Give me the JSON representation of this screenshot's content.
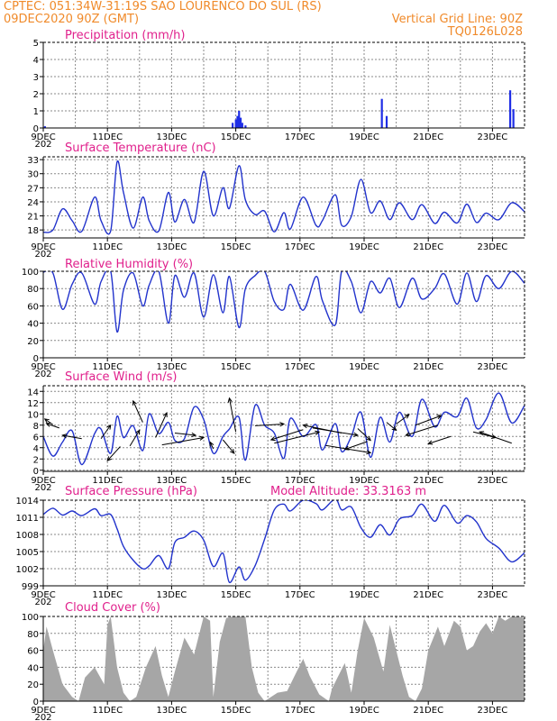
{
  "header": {
    "line1_left": "CPTEC:  051:34W-31:19S  SAO LOURENCO DO SUL (RS)",
    "line2_left": "09DEC2020 90Z (GMT)",
    "line2_right": "Vertical Grid Line: 90Z",
    "line3_right": "TQ0126L028"
  },
  "x_axis": {
    "tick_labels": [
      "9DEC",
      "11DEC",
      "13DEC",
      "15DEC",
      "17DEC",
      "19DEC",
      "21DEC",
      "23DEC"
    ],
    "tick_days": [
      0,
      2,
      4,
      6,
      8,
      10,
      12,
      14
    ],
    "start_label": "09DEC2020 90Z",
    "end_day": 15,
    "year_glyph": "202"
  },
  "chart_data": [
    {
      "type": "bar",
      "title": "Precipitation (mm/h)",
      "ylim": [
        0,
        5
      ],
      "yticks": [
        "0",
        "1",
        "2",
        "3",
        "4",
        "5"
      ],
      "grid": true,
      "color": "#1f2ee6",
      "points": [
        {
          "x": 0.05,
          "y": 0.1
        },
        {
          "x": 5.9,
          "y": 0.3
        },
        {
          "x": 6.0,
          "y": 0.5
        },
        {
          "x": 6.05,
          "y": 0.7
        },
        {
          "x": 6.1,
          "y": 1.0
        },
        {
          "x": 6.15,
          "y": 0.6
        },
        {
          "x": 6.2,
          "y": 0.3
        },
        {
          "x": 6.3,
          "y": 0.15
        },
        {
          "x": 10.55,
          "y": 1.7
        },
        {
          "x": 10.7,
          "y": 0.7
        },
        {
          "x": 14.55,
          "y": 2.2
        },
        {
          "x": 14.65,
          "y": 1.1
        }
      ]
    },
    {
      "type": "line",
      "title": "Surface Temperature (nC)",
      "ylim": [
        16.3,
        33.6
      ],
      "yticks": [
        "18",
        "21",
        "24",
        "27",
        "30",
        "33"
      ],
      "ytick_values": [
        18,
        21,
        24,
        27,
        30,
        33
      ],
      "grid": true,
      "color": "#2233cc",
      "x": [
        0,
        0.3,
        0.6,
        0.9,
        1.2,
        1.6,
        1.8,
        2.1,
        2.3,
        2.5,
        2.8,
        3.1,
        3.3,
        3.6,
        3.9,
        4.1,
        4.4,
        4.7,
        5.0,
        5.3,
        5.6,
        5.8,
        6.1,
        6.3,
        6.6,
        6.9,
        7.2,
        7.5,
        7.7,
        8.1,
        8.5,
        8.7,
        9.1,
        9.3,
        9.6,
        9.9,
        10.2,
        10.5,
        10.8,
        11.1,
        11.5,
        11.8,
        12.2,
        12.5,
        12.9,
        13.2,
        13.5,
        13.8,
        14.2,
        14.6,
        15.0
      ],
      "y": [
        17.5,
        18,
        22.5,
        20,
        17.7,
        25,
        20,
        17.8,
        32.5,
        26,
        18.4,
        25,
        20,
        17.8,
        26,
        19.7,
        24.5,
        19.6,
        30.5,
        21,
        27,
        22.6,
        31.7,
        24.4,
        21.3,
        22,
        17.6,
        21.7,
        18.2,
        25,
        19,
        20,
        25.5,
        19,
        20.9,
        28.8,
        21.7,
        24.2,
        20.2,
        23.8,
        20.2,
        23.4,
        19.4,
        21.8,
        19.5,
        23.5,
        19.6,
        21.6,
        20.2,
        23.8,
        21.9
      ]
    },
    {
      "type": "line",
      "title": "Relative Humidity (%)",
      "ylim": [
        0,
        100
      ],
      "yticks": [
        "0",
        "20",
        "40",
        "60",
        "80",
        "100"
      ],
      "ytick_values": [
        0,
        20,
        40,
        60,
        80,
        100
      ],
      "grid": true,
      "color": "#2233cc",
      "x": [
        0,
        0.3,
        0.6,
        0.9,
        1.2,
        1.6,
        1.8,
        2.1,
        2.3,
        2.5,
        2.8,
        3.1,
        3.3,
        3.6,
        3.9,
        4.1,
        4.4,
        4.7,
        5.0,
        5.3,
        5.6,
        5.8,
        6.1,
        6.3,
        6.6,
        6.9,
        7.2,
        7.5,
        7.7,
        8.1,
        8.5,
        8.7,
        9.1,
        9.3,
        9.6,
        9.9,
        10.2,
        10.5,
        10.8,
        11.1,
        11.5,
        11.8,
        12.2,
        12.5,
        12.9,
        13.2,
        13.5,
        13.8,
        14.2,
        14.6,
        15.0
      ],
      "y": [
        99,
        98,
        56,
        85,
        98,
        62,
        88,
        100,
        30,
        78,
        98,
        60,
        84,
        100,
        40,
        95,
        70,
        98,
        47,
        96,
        52,
        94,
        35,
        80,
        95,
        100,
        65,
        56,
        85,
        55,
        94,
        66,
        38,
        100,
        88,
        52,
        88,
        75,
        92,
        58,
        92,
        68,
        80,
        97,
        62,
        98,
        65,
        95,
        80,
        100,
        86
      ]
    },
    {
      "type": "line",
      "title": "Surface Wind (m/s)",
      "ylim": [
        -0.2,
        15
      ],
      "yticks": [
        "0",
        "2",
        "4",
        "6",
        "8",
        "10",
        "12",
        "14"
      ],
      "ytick_values": [
        0,
        2,
        4,
        6,
        8,
        10,
        12,
        14
      ],
      "grid": true,
      "color": "#2233cc",
      "x": [
        0,
        0.3,
        0.6,
        0.9,
        1.2,
        1.6,
        1.8,
        2.1,
        2.3,
        2.5,
        2.8,
        3.1,
        3.3,
        3.6,
        3.9,
        4.1,
        4.4,
        4.7,
        5.0,
        5.3,
        5.6,
        5.8,
        6.1,
        6.3,
        6.6,
        6.9,
        7.2,
        7.5,
        7.7,
        8.1,
        8.5,
        8.7,
        9.1,
        9.3,
        9.6,
        9.9,
        10.2,
        10.5,
        10.8,
        11.1,
        11.5,
        11.8,
        12.2,
        12.5,
        12.9,
        13.2,
        13.5,
        13.8,
        14.2,
        14.6,
        15.0
      ],
      "y": [
        6,
        2.5,
        5,
        7,
        1,
        6.5,
        7.3,
        3,
        9.6,
        5.8,
        7.9,
        3.5,
        10,
        6.5,
        8.5,
        5.3,
        5.6,
        11.2,
        9,
        3,
        6,
        7.3,
        9.4,
        1.8,
        11.5,
        8,
        6.6,
        2.1,
        9.2,
        6,
        8.1,
        3.6,
        8.3,
        3.3,
        6,
        10.3,
        2.3,
        9.4,
        5,
        10.3,
        6,
        12.6,
        7.7,
        10.3,
        9.5,
        12.8,
        7.5,
        9,
        13.7,
        8.4,
        11.5
      ],
      "arrows": [
        {
          "x": 0.3,
          "y": 8.1,
          "dx": -0.25,
          "dy": 1.0
        },
        {
          "x": 0.5,
          "y": 7.5,
          "dx": -0.4,
          "dy": 0.8
        },
        {
          "x": 1.2,
          "y": 5.6,
          "dx": -0.6,
          "dy": 0.6
        },
        {
          "x": 1.8,
          "y": 5.6,
          "dx": 0.3,
          "dy": 2.4
        },
        {
          "x": 2.4,
          "y": 4.2,
          "dx": -0.4,
          "dy": -2.5
        },
        {
          "x": 2.7,
          "y": 4.3,
          "dx": 0.3,
          "dy": 2.8
        },
        {
          "x": 3.1,
          "y": 8.5,
          "dx": -0.3,
          "dy": 3.8
        },
        {
          "x": 3.5,
          "y": 5.8,
          "dx": 0.35,
          "dy": 4.4
        },
        {
          "x": 3.7,
          "y": 4.5,
          "dx": 1.3,
          "dy": 1.3
        },
        {
          "x": 4.1,
          "y": 6.6,
          "dx": 0.65,
          "dy": -0.4
        },
        {
          "x": 5.3,
          "y": 3.8,
          "dx": -0.1,
          "dy": 1.2
        },
        {
          "x": 5.6,
          "y": 5.4,
          "dx": 0.35,
          "dy": -2.4
        },
        {
          "x": 6.0,
          "y": 6.8,
          "dx": -0.2,
          "dy": 6.0
        },
        {
          "x": 6.6,
          "y": 7.9,
          "dx": 0.9,
          "dy": 0.3
        },
        {
          "x": 7.2,
          "y": 4.8,
          "dx": 1.4,
          "dy": 2.0
        },
        {
          "x": 8.1,
          "y": 7.2,
          "dx": -1.0,
          "dy": -1.8
        },
        {
          "x": 8.4,
          "y": 7.5,
          "dx": 1.4,
          "dy": -1.3
        },
        {
          "x": 8.8,
          "y": 4.4,
          "dx": 1.4,
          "dy": -1.3
        },
        {
          "x": 9.3,
          "y": 6.6,
          "dx": -1.2,
          "dy": 1.4
        },
        {
          "x": 9.8,
          "y": 7.4,
          "dx": 0.4,
          "dy": -2.1
        },
        {
          "x": 10.1,
          "y": 5.1,
          "dx": -0.7,
          "dy": -1.4
        },
        {
          "x": 10.7,
          "y": 8.5,
          "dx": 0.3,
          "dy": -1.4
        },
        {
          "x": 11.0,
          "y": 8.2,
          "dx": 0.4,
          "dy": 1.7
        },
        {
          "x": 11.6,
          "y": 8.0,
          "dx": 0.8,
          "dy": 1.7
        },
        {
          "x": 12.3,
          "y": 8.0,
          "dx": -1.0,
          "dy": -1.8
        },
        {
          "x": 12.7,
          "y": 6.0,
          "dx": -0.7,
          "dy": -1.3
        },
        {
          "x": 13.4,
          "y": 6.8,
          "dx": 0.7,
          "dy": -1.0
        },
        {
          "x": 14.6,
          "y": 4.8,
          "dx": -1.0,
          "dy": 2.0
        }
      ]
    },
    {
      "type": "line",
      "title": "Surface Pressure (hPa)",
      "annotation": "Model Altitude: 33.3163 m",
      "ylim": [
        999,
        1014
      ],
      "yticks": [
        "999",
        "1002",
        "1005",
        "1008",
        "1011",
        "1014"
      ],
      "ytick_values": [
        999,
        1002,
        1005,
        1008,
        1011,
        1014
      ],
      "grid": true,
      "color": "#2233cc",
      "x": [
        0,
        0.3,
        0.6,
        0.9,
        1.2,
        1.6,
        1.8,
        2.1,
        2.3,
        2.5,
        2.8,
        3.1,
        3.3,
        3.6,
        3.9,
        4.1,
        4.4,
        4.7,
        5.0,
        5.3,
        5.6,
        5.8,
        6.1,
        6.3,
        6.6,
        6.9,
        7.2,
        7.5,
        7.7,
        8.1,
        8.5,
        8.7,
        9.1,
        9.3,
        9.6,
        9.9,
        10.2,
        10.5,
        10.8,
        11.1,
        11.5,
        11.8,
        12.2,
        12.5,
        12.9,
        13.2,
        13.5,
        13.8,
        14.2,
        14.6,
        15.0
      ],
      "y": [
        1011.5,
        1012.6,
        1011.4,
        1012.1,
        1011.3,
        1012.5,
        1011.3,
        1011.5,
        1009.0,
        1005.9,
        1003.5,
        1002.0,
        1002.5,
        1004.3,
        1002.0,
        1006.6,
        1007.5,
        1008.6,
        1007.0,
        1002.4,
        1004.7,
        999.6,
        1002.3,
        1000.0,
        1002.5,
        1007.2,
        1012.3,
        1013.3,
        1012.1,
        1014.0,
        1013.4,
        1012.3,
        1014.2,
        1012.3,
        1012.8,
        1009.2,
        1007.5,
        1009.7,
        1007.9,
        1010.7,
        1011.3,
        1013.3,
        1010.3,
        1013.1,
        1010.0,
        1011.3,
        1010.2,
        1007.3,
        1005.6,
        1003.2,
        1004.8
      ]
    },
    {
      "type": "area",
      "title": "Cloud Cover (%)",
      "ylim": [
        0,
        100
      ],
      "yticks": [
        "0",
        "20",
        "40",
        "60",
        "80",
        "100"
      ],
      "ytick_values": [
        0,
        20,
        40,
        60,
        80,
        100
      ],
      "grid": true,
      "color": "#a6a6a6",
      "x": [
        0,
        0.1,
        0.3,
        0.6,
        0.9,
        1.1,
        1.3,
        1.6,
        1.9,
        2.0,
        2.1,
        2.3,
        2.5,
        2.7,
        2.9,
        3.2,
        3.5,
        3.7,
        3.9,
        4.1,
        4.4,
        4.7,
        5.0,
        5.2,
        5.3,
        5.5,
        5.7,
        5.9,
        6.1,
        6.3,
        6.5,
        6.7,
        6.9,
        7.1,
        7.3,
        7.6,
        7.9,
        8.1,
        8.3,
        8.6,
        8.9,
        9.0,
        9.2,
        9.4,
        9.6,
        9.8,
        10.0,
        10.3,
        10.6,
        10.8,
        11.0,
        11.2,
        11.4,
        11.6,
        11.8,
        12.0,
        12.3,
        12.5,
        12.8,
        13.0,
        13.2,
        13.4,
        13.6,
        13.8,
        14.0,
        14.2,
        14.4,
        14.6,
        14.8,
        15.0
      ],
      "y": [
        60,
        88,
        60,
        20,
        5,
        0,
        28,
        40,
        20,
        90,
        100,
        40,
        10,
        0,
        5,
        40,
        65,
        30,
        5,
        35,
        75,
        55,
        100,
        95,
        5,
        70,
        98,
        100,
        100,
        100,
        40,
        10,
        0,
        5,
        10,
        12,
        35,
        50,
        30,
        8,
        0,
        15,
        30,
        45,
        10,
        60,
        98,
        75,
        35,
        90,
        60,
        30,
        5,
        0,
        15,
        60,
        88,
        65,
        95,
        88,
        60,
        65,
        82,
        92,
        80,
        100,
        95,
        100,
        100,
        98
      ]
    }
  ]
}
